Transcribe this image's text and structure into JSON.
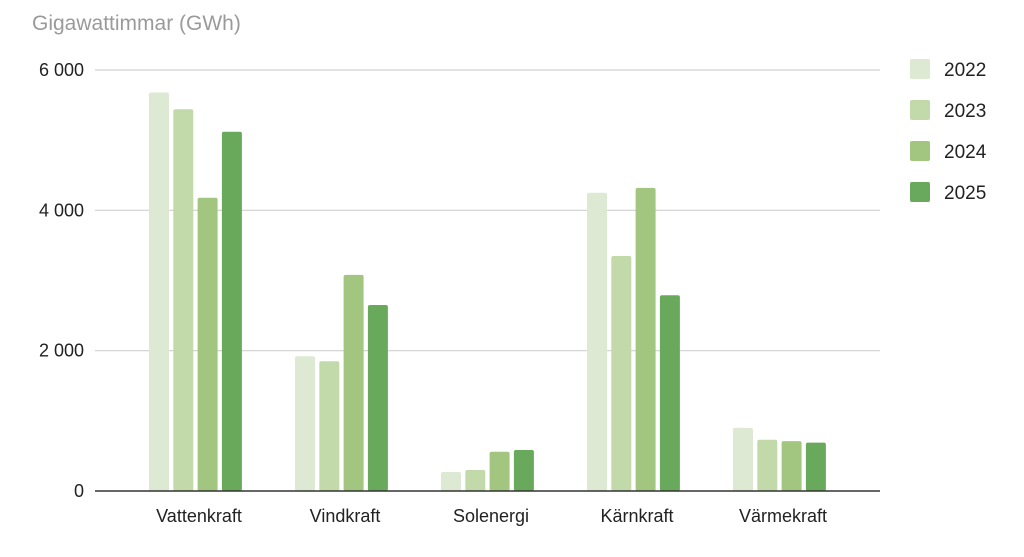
{
  "chart_data": {
    "type": "bar",
    "ylabel": "Gigawattimmar (GWh)",
    "categories": [
      "Vattenkraft",
      "Vindkraft",
      "Solenergi",
      "Kärnkraft",
      "Värmekraft"
    ],
    "series": [
      {
        "name": "2022",
        "color": "#dde9d3",
        "values": [
          5680,
          1920,
          270,
          4250,
          900
        ]
      },
      {
        "name": "2023",
        "color": "#c2d9aa",
        "values": [
          5440,
          1850,
          300,
          3350,
          730
        ]
      },
      {
        "name": "2024",
        "color": "#a2c680",
        "values": [
          4180,
          3080,
          560,
          4320,
          710
        ]
      },
      {
        "name": "2025",
        "color": "#69a95b",
        "values": [
          5120,
          2650,
          585,
          2790,
          690
        ]
      }
    ],
    "ylim": [
      0,
      6000
    ],
    "yticks": [
      0,
      2000,
      4000,
      6000
    ],
    "ytick_labels": [
      "0",
      "2 000",
      "4 000",
      "6 000"
    ],
    "grid": true,
    "legend_position": "right"
  }
}
